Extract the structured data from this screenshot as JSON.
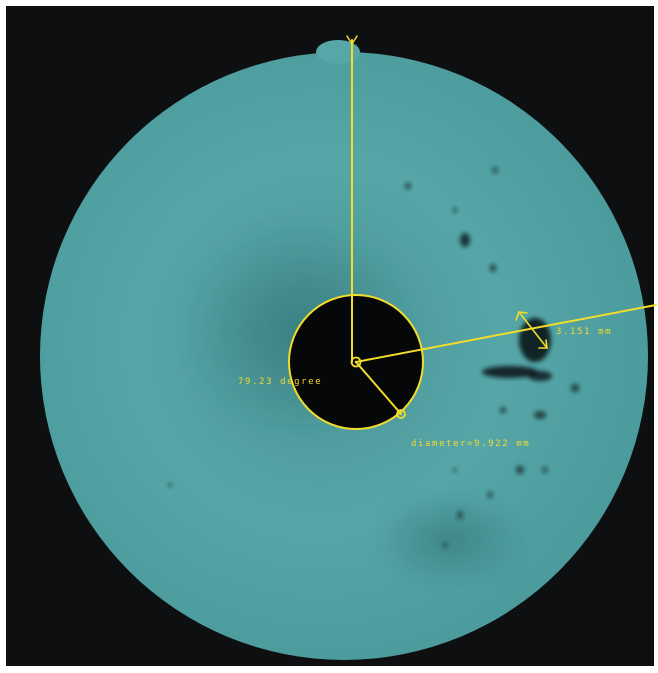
{
  "colors": {
    "background": "#0d0f10",
    "disc": "#4f9ea0",
    "disc_dark": "#3c8688",
    "hole": "#050708",
    "defect": "#0b1a1c",
    "annotation": "#f2dc2c"
  },
  "annotations": {
    "axis_label": "y",
    "angle_label": "79.23 degree",
    "diameter_label": "diameter=9.922 mm",
    "defect_size_label": "3.151 mm"
  }
}
